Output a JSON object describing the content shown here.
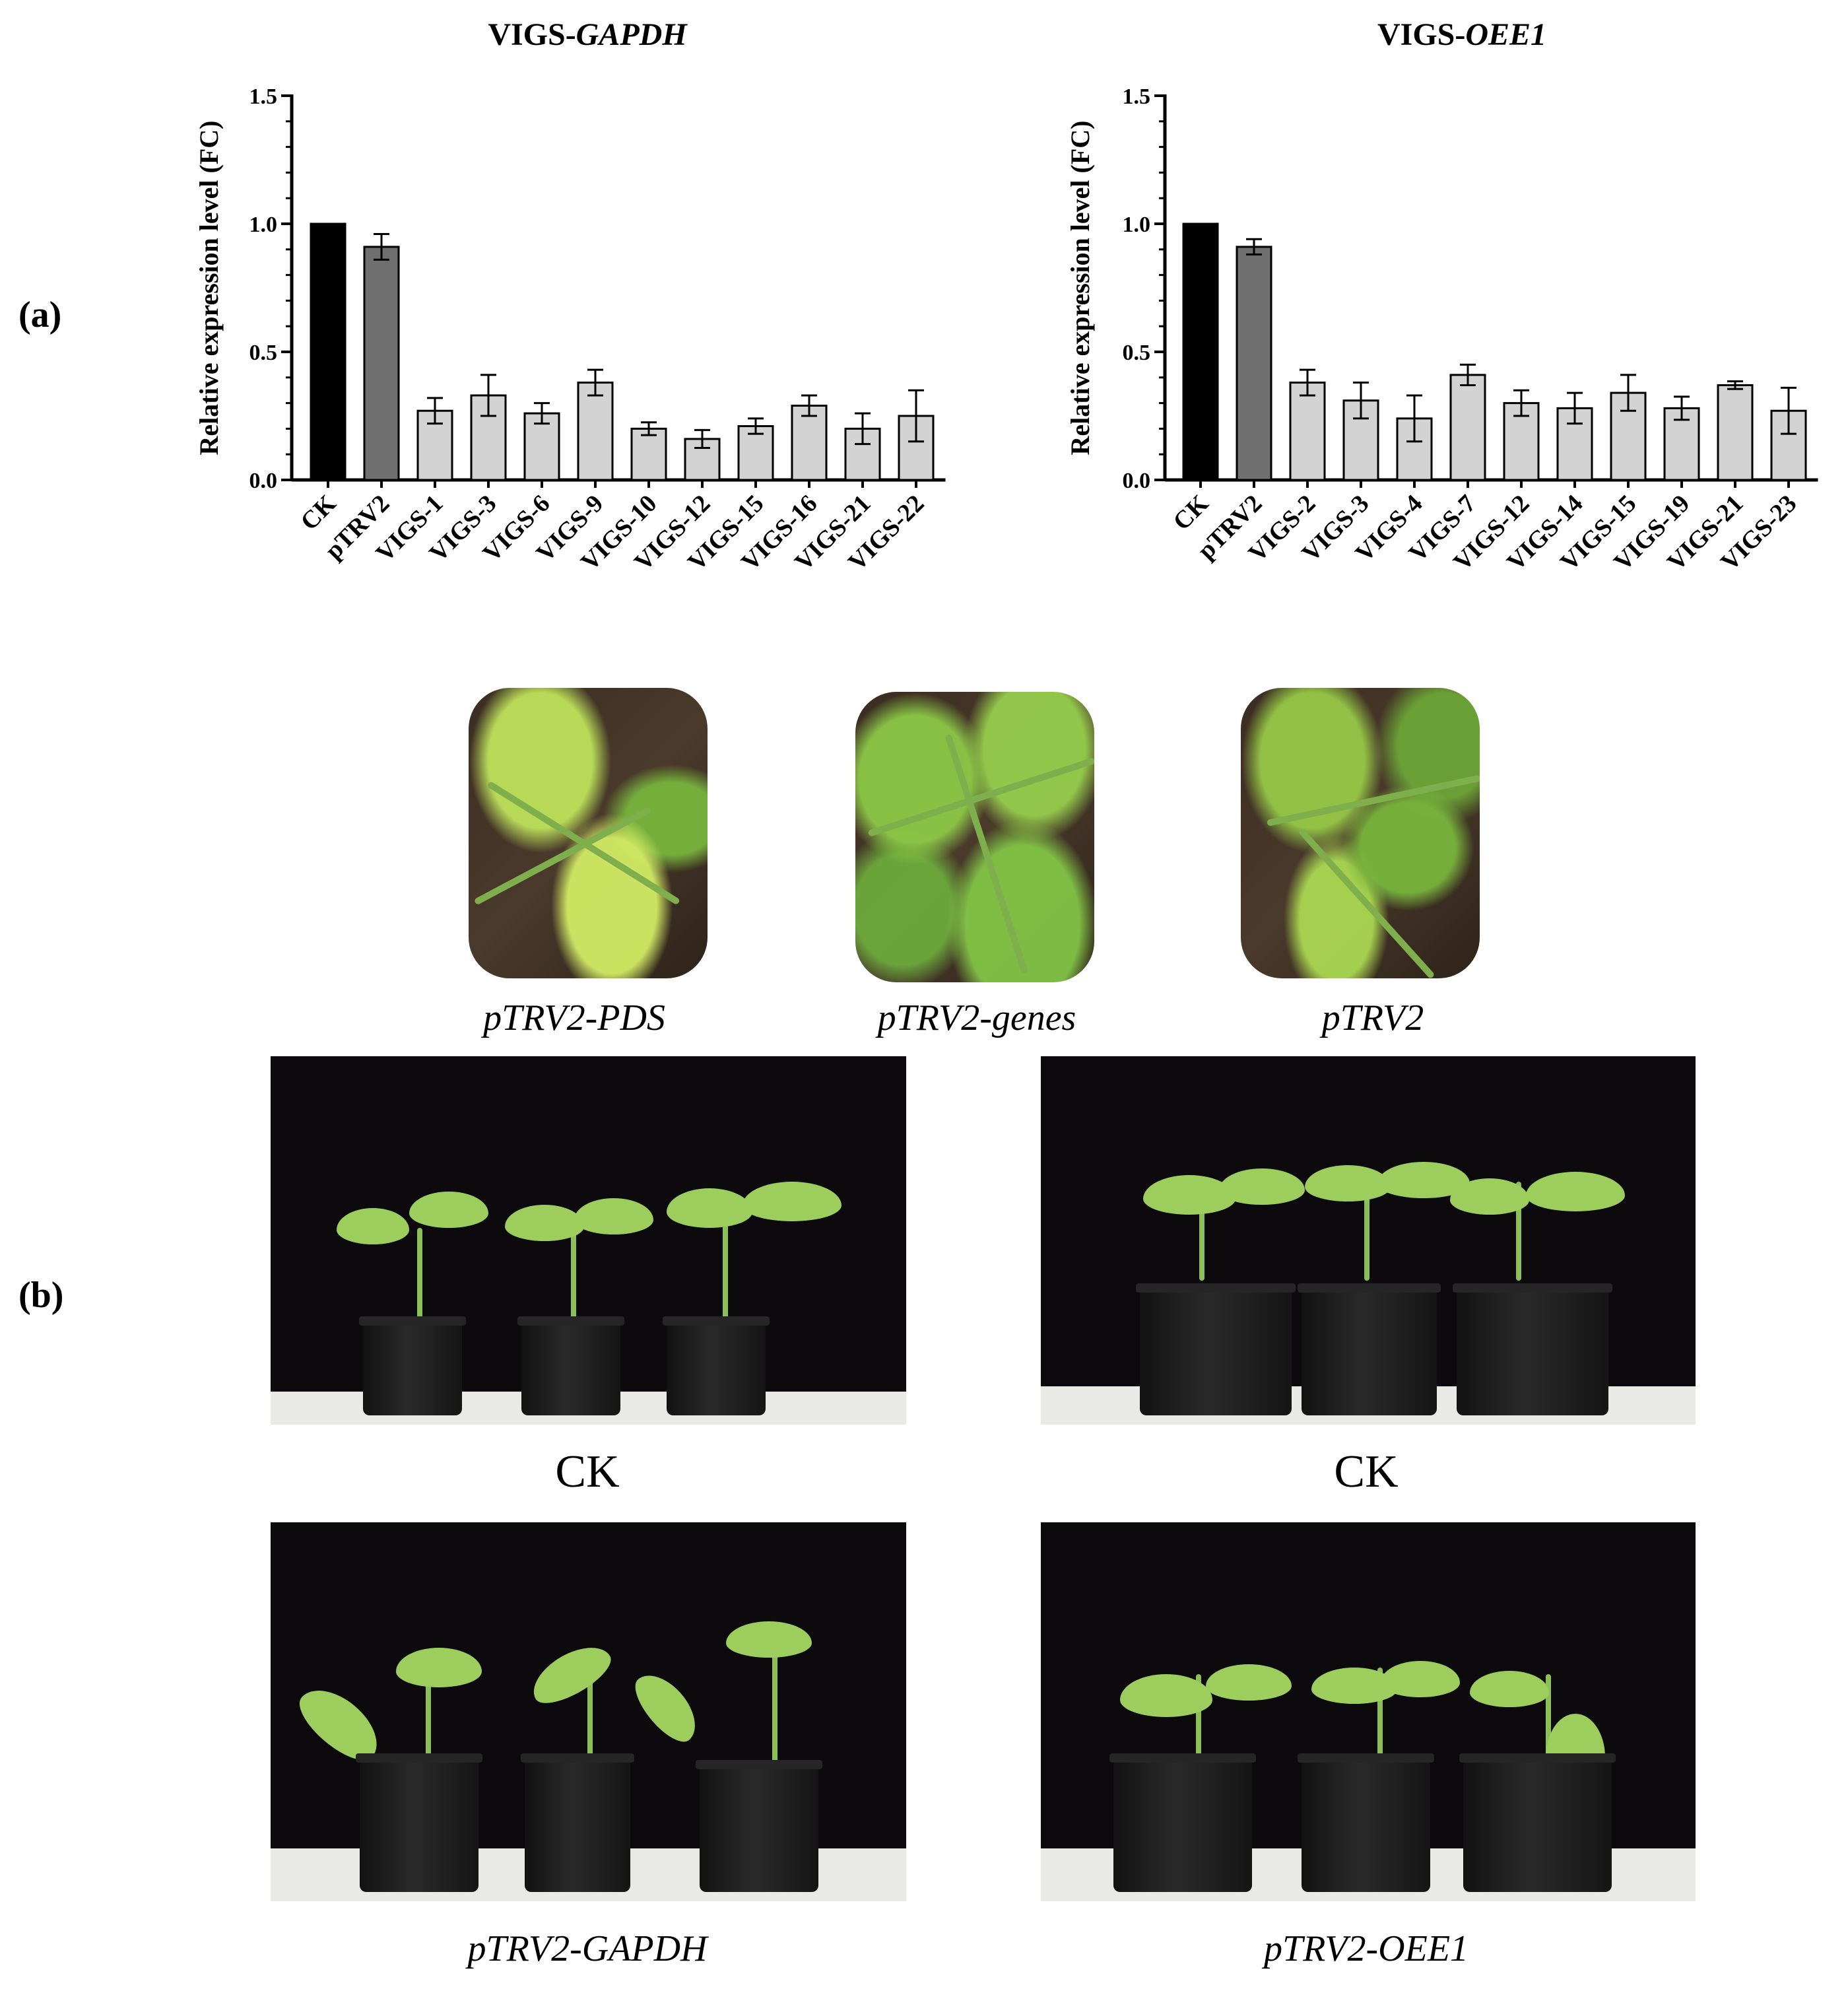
{
  "panel_labels": {
    "a": "(a)",
    "b": "(b)"
  },
  "chart_data": [
    {
      "type": "bar",
      "title_prefix": "VIGS-",
      "title_gene": "GAPDH",
      "ylabel": "Relative expression level (FC)",
      "xlabel": "",
      "ylim": [
        0,
        1.5
      ],
      "yticks": [
        "0.0",
        "0.5",
        "1.0",
        "1.5"
      ],
      "categories": [
        "CK",
        "pTRV2",
        "VIGS-1",
        "VIGS-3",
        "VIGS-6",
        "VIGS-9",
        "VIGS-10",
        "VIGS-12",
        "VIGS-15",
        "VIGS-16",
        "VIGS-21",
        "VIGS-22"
      ],
      "values": [
        1.0,
        0.91,
        0.27,
        0.33,
        0.26,
        0.38,
        0.2,
        0.16,
        0.21,
        0.29,
        0.2,
        0.25
      ],
      "errors": [
        0.0,
        0.05,
        0.05,
        0.08,
        0.04,
        0.05,
        0.025,
        0.035,
        0.03,
        0.04,
        0.06,
        0.1
      ],
      "bar_colors": [
        "#000000",
        "#6f6f6f",
        "#d3d3d3",
        "#d3d3d3",
        "#d3d3d3",
        "#d3d3d3",
        "#d3d3d3",
        "#d3d3d3",
        "#d3d3d3",
        "#d3d3d3",
        "#d3d3d3",
        "#d3d3d3"
      ]
    },
    {
      "type": "bar",
      "title_prefix": "VIGS-",
      "title_gene": "OEE1",
      "ylabel": "Relative expression level (FC)",
      "xlabel": "",
      "ylim": [
        0,
        1.5
      ],
      "yticks": [
        "0.0",
        "0.5",
        "1.0",
        "1.5"
      ],
      "categories": [
        "CK",
        "pTRV2",
        "VIGS-2",
        "VIGS-3",
        "VIGS-4",
        "VIGS-7",
        "VIGS-12",
        "VIGS-14",
        "VIGS-15",
        "VIGS-19",
        "VIGS-21",
        "VIGS-23"
      ],
      "values": [
        1.0,
        0.91,
        0.38,
        0.31,
        0.24,
        0.41,
        0.3,
        0.28,
        0.34,
        0.28,
        0.37,
        0.27
      ],
      "errors": [
        0.0,
        0.03,
        0.05,
        0.07,
        0.09,
        0.04,
        0.05,
        0.06,
        0.07,
        0.045,
        0.015,
        0.09
      ],
      "bar_colors": [
        "#000000",
        "#6f6f6f",
        "#d3d3d3",
        "#d3d3d3",
        "#d3d3d3",
        "#d3d3d3",
        "#d3d3d3",
        "#d3d3d3",
        "#d3d3d3",
        "#d3d3d3",
        "#d3d3d3",
        "#d3d3d3"
      ]
    }
  ],
  "thumbnails": [
    {
      "caption": "pTRV2-PDS",
      "icon": "leaf-closeup-photo"
    },
    {
      "caption": "pTRV2-genes",
      "icon": "leaf-closeup-photo"
    },
    {
      "caption": "pTRV2",
      "icon": "leaf-closeup-photo"
    }
  ],
  "photos": {
    "top_left_caption": "CK",
    "top_right_caption": "CK",
    "bottom_left_caption": "pTRV2-GAPDH",
    "bottom_right_caption": "pTRV2-OEE1",
    "backdrop_color": "#0c0a0c",
    "leaf_color": "#9ccd5d"
  }
}
